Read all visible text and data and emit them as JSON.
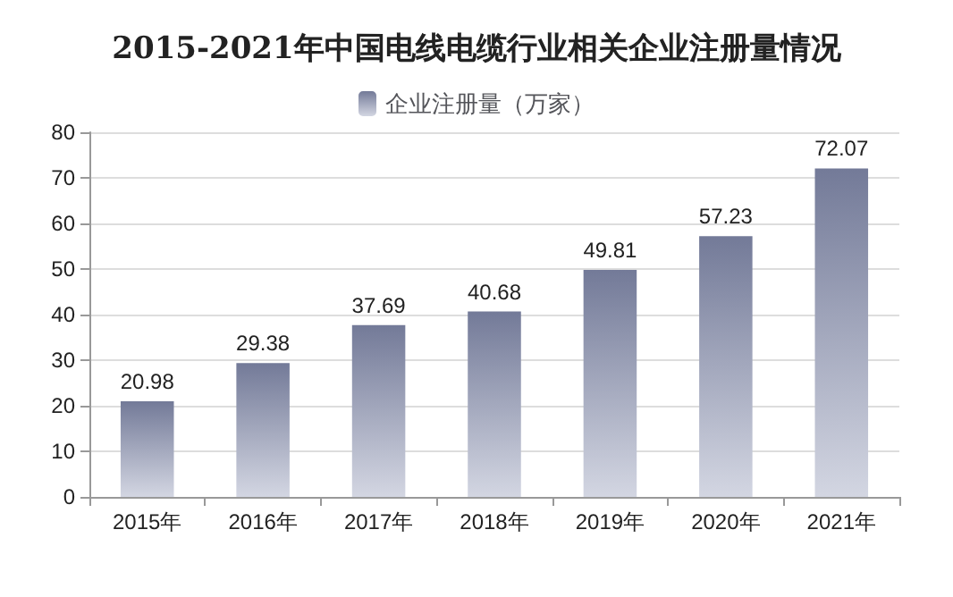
{
  "chart_data": {
    "type": "bar",
    "title": "2015-2021年中国电线电缆行业相关企业注册量情况",
    "categories": [
      "2015年",
      "2016年",
      "2017年",
      "2018年",
      "2019年",
      "2020年",
      "2021年"
    ],
    "series": [
      {
        "name": "企业注册量（万家）",
        "color": "#737a98",
        "values": [
          20.98,
          29.38,
          37.69,
          40.68,
          49.81,
          57.23,
          72.07
        ]
      }
    ],
    "ylim": [
      0,
      80
    ],
    "yticks": [
      0,
      10,
      20,
      30,
      40,
      50,
      60,
      70,
      80
    ],
    "grid": "y",
    "legend": "top",
    "data_labels": true
  }
}
